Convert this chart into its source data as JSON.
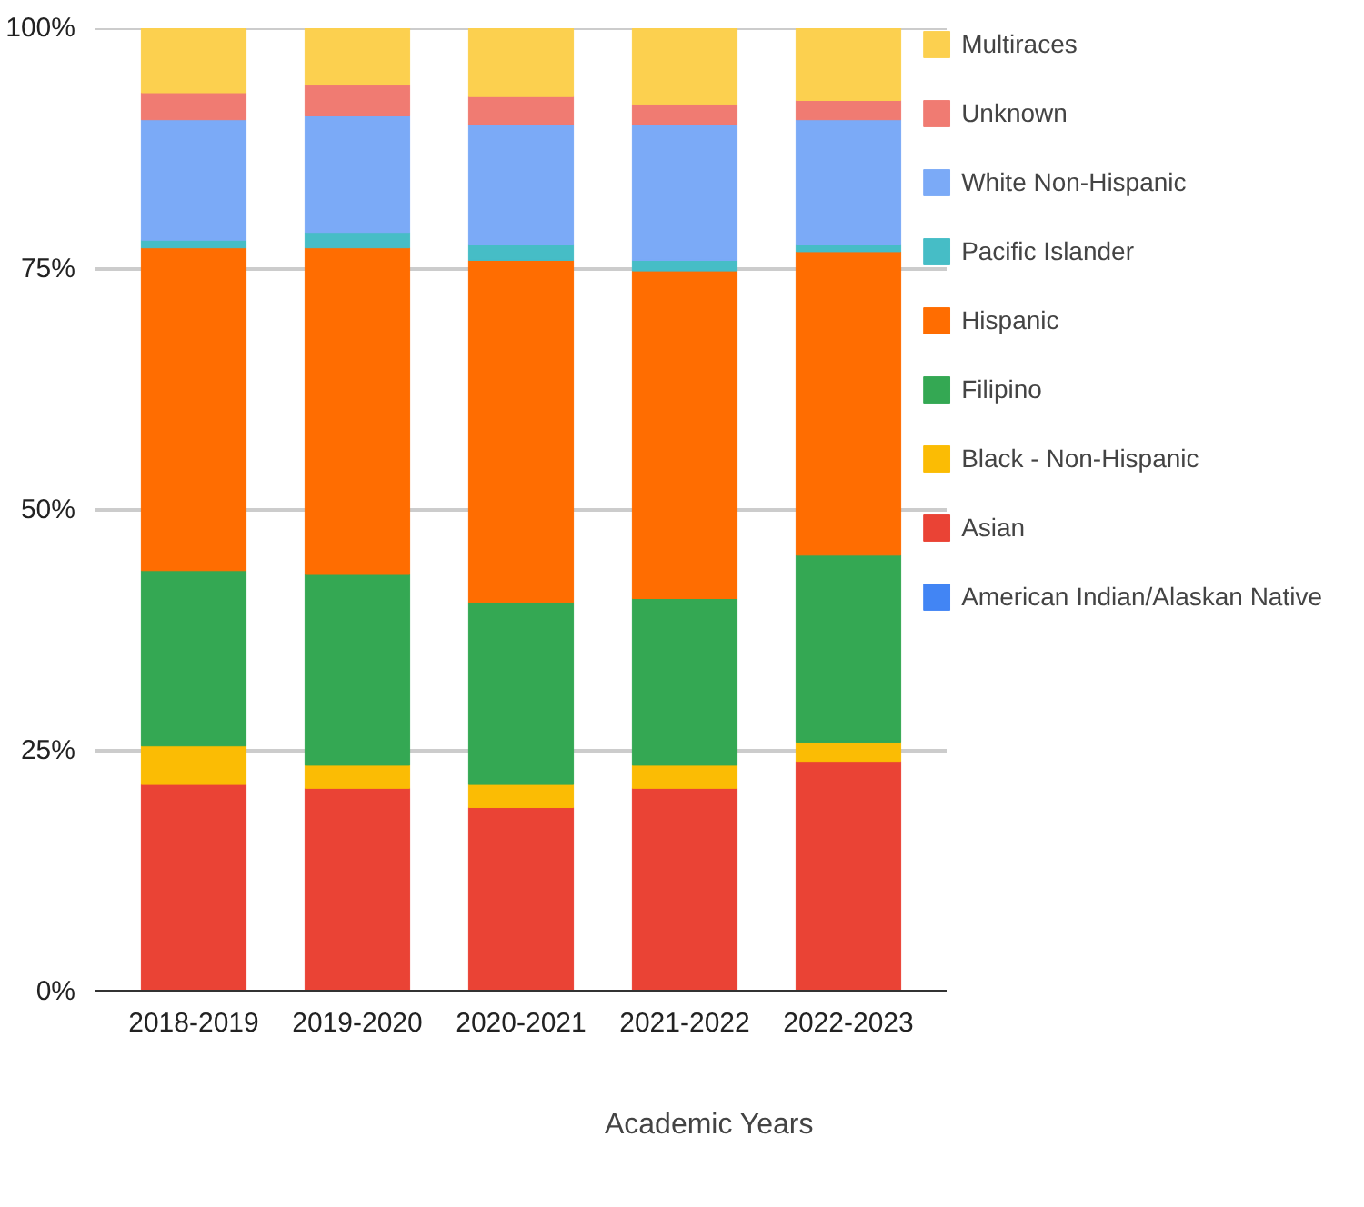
{
  "chart_data": {
    "type": "bar",
    "stacked": true,
    "xlabel": "Academic Years",
    "categories": [
      "2018-2019",
      "2019-2020",
      "2020-2021",
      "2021-2022",
      "2022-2023"
    ],
    "series": [
      {
        "name": "American Indian/Alaskan Native",
        "color": "#4285f4",
        "values": [
          null,
          null,
          null,
          null,
          null
        ]
      },
      {
        "name": "Asian",
        "color": "#ea4335",
        "values": [
          21.5,
          21.1,
          19.1,
          21.1,
          23.9
        ]
      },
      {
        "name": "Black - Non-Hispanic",
        "color": "#fbbc04",
        "values": [
          4.0,
          2.4,
          2.4,
          2.4,
          2.0
        ]
      },
      {
        "name": "Filipino",
        "color": "#34a853",
        "values": [
          18.2,
          19.8,
          18.9,
          17.3,
          19.4
        ]
      },
      {
        "name": "Hispanic",
        "color": "#ff6d01",
        "values": [
          33.5,
          33.9,
          35.5,
          34.0,
          31.5
        ]
      },
      {
        "name": "Pacific Islander",
        "color": "#46bdc6",
        "values": [
          0.8,
          1.6,
          1.6,
          1.1,
          0.7
        ]
      },
      {
        "name": "White Non-Hispanic",
        "color": "#7baaf7",
        "values": [
          12.5,
          12.1,
          12.5,
          14.1,
          13.0
        ]
      },
      {
        "name": "Unknown",
        "color": "#f07b72",
        "values": [
          2.8,
          3.2,
          2.9,
          2.1,
          2.0
        ]
      },
      {
        "name": "Multiraces",
        "color": "#fcd04f",
        "values": [
          6.7,
          5.9,
          7.1,
          7.9,
          7.5
        ]
      }
    ],
    "ylim": [
      0,
      100
    ],
    "yticks": [
      {
        "value": 0,
        "label": "0%"
      },
      {
        "value": 25,
        "label": "25%"
      },
      {
        "value": 50,
        "label": "50%"
      },
      {
        "value": 75,
        "label": "75%"
      },
      {
        "value": 100,
        "label": "100%"
      }
    ],
    "grid": "y",
    "legend": "right"
  }
}
